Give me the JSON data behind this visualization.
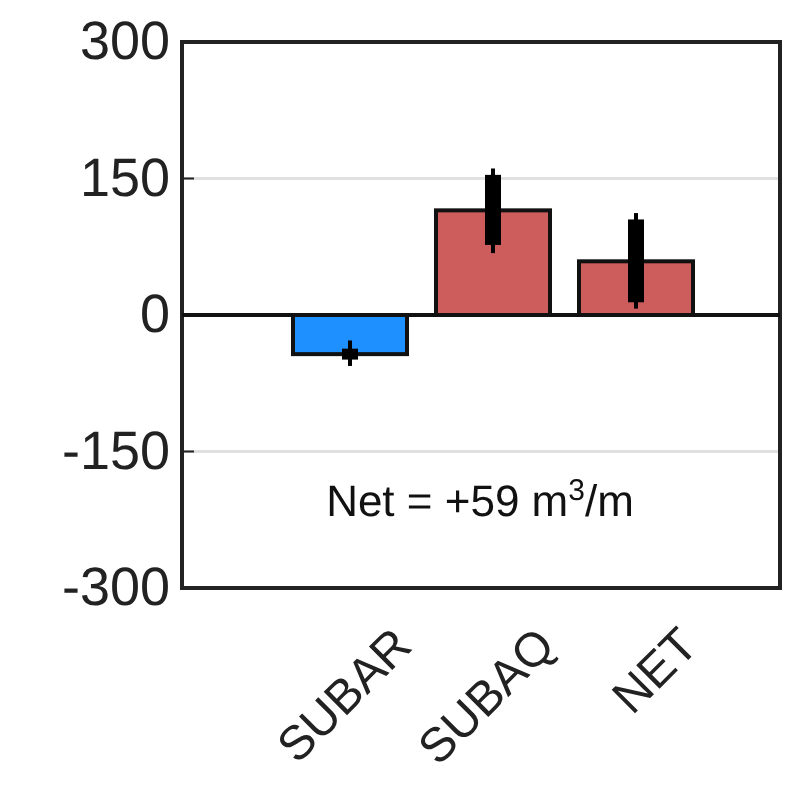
{
  "chart_data": {
    "type": "bar",
    "categories": [
      "SUBAR",
      "SUBAQ",
      "NET"
    ],
    "series": [
      {
        "colors": [
          "#1e90ff",
          "#cd5c5c",
          "#cd5c5c"
        ],
        "values": [
          -43,
          115,
          59
        ],
        "errors": [
          [
            -56,
            -28
          ],
          [
            68,
            161
          ],
          [
            7,
            112
          ]
        ]
      },
      {
        "color": "#000000",
        "base": [
          -49,
          77,
          14
        ],
        "values": [
          12,
          77,
          91
        ]
      }
    ],
    "ylim": [
      -300,
      300
    ],
    "yticks": [
      -300,
      -150,
      0,
      150,
      300
    ],
    "grid": "y",
    "annotations": [
      "Net = +59 m$^{3}$/m"
    ]
  }
}
